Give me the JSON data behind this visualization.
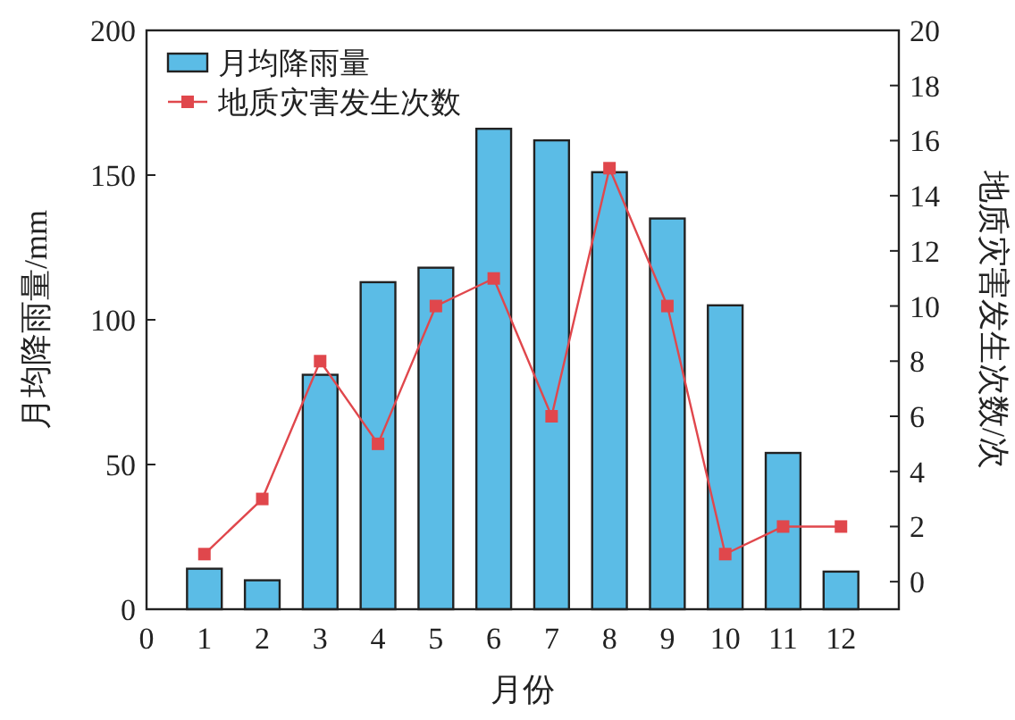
{
  "chart_data": {
    "type": "bar",
    "xlabel": "月份",
    "ylabel": "月均降雨量/mm",
    "y2label": "地质灾害发生次数/次",
    "x": [
      1,
      2,
      3,
      4,
      5,
      6,
      7,
      8,
      9,
      10,
      11,
      12
    ],
    "xlim": [
      0,
      13
    ],
    "xticks": [
      0,
      1,
      2,
      3,
      4,
      5,
      6,
      7,
      8,
      9,
      10,
      11,
      12
    ],
    "ylim": [
      0,
      200
    ],
    "yticks": [
      0,
      50,
      100,
      150,
      200
    ],
    "y2lim": [
      -1,
      20
    ],
    "y2ticks": [
      0,
      2,
      4,
      6,
      8,
      10,
      12,
      14,
      16,
      18,
      20
    ],
    "legend": "top left",
    "series": [
      {
        "name": "月均降雨量",
        "color": "#5bbce6",
        "values": [
          14,
          10,
          81,
          113,
          118,
          166,
          162,
          151,
          135,
          105,
          54,
          13
        ]
      },
      {
        "name": "地质灾害发生次数",
        "type": "line",
        "axis": "y2",
        "color": "#e0474c",
        "marker": "square",
        "values": [
          1,
          3,
          8,
          5,
          10,
          11,
          6,
          15,
          10,
          1,
          2,
          2
        ]
      }
    ]
  }
}
